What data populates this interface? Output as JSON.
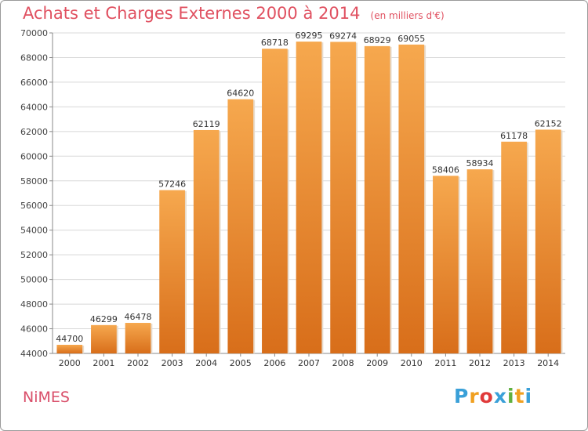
{
  "header": {
    "title": "Achats et Charges Externes 2000 à 2014",
    "unit": "(en milliers d'€)"
  },
  "footer": {
    "town": "NiMES",
    "logo_text": "Proxiti",
    "logo_colors": [
      "#3aa0d8",
      "#f0a020",
      "#e03a3a",
      "#3aa0d8",
      "#60b040",
      "#f0a020",
      "#3aa0d8"
    ]
  },
  "colors": {
    "bar_light": "#f6a84e",
    "bar_dark": "#d86e1a",
    "grid": "#d8d8d8",
    "title": "#e05060"
  },
  "chart_data": {
    "type": "bar",
    "title": "Achats et Charges Externes 2000 à 2014",
    "xlabel": "",
    "ylabel": "",
    "categories": [
      "2000",
      "2001",
      "2002",
      "2003",
      "2004",
      "2005",
      "2006",
      "2007",
      "2008",
      "2009",
      "2010",
      "2011",
      "2012",
      "2013",
      "2014"
    ],
    "values": [
      44700,
      46299,
      46478,
      57246,
      62119,
      64620,
      68718,
      69295,
      69274,
      68929,
      69055,
      58406,
      58934,
      61178,
      62152
    ],
    "ylim": [
      44000,
      70000
    ],
    "yticks": [
      44000,
      46000,
      48000,
      50000,
      52000,
      54000,
      56000,
      58000,
      60000,
      62000,
      64000,
      66000,
      68000,
      70000
    ],
    "grid": true,
    "data_labels": true
  }
}
